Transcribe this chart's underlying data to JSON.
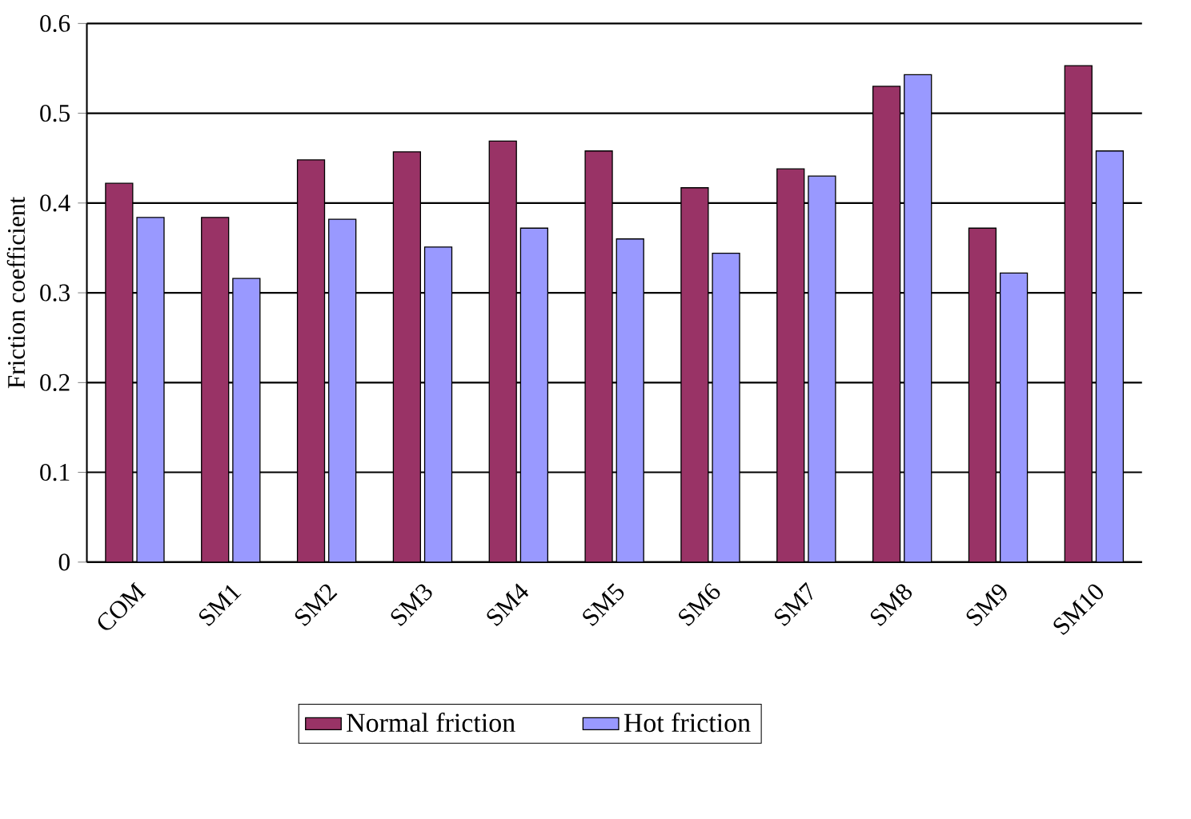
{
  "chart_data": {
    "type": "bar",
    "ylabel": "Friction coefficient",
    "categories": [
      "COM",
      "SM1",
      "SM2",
      "SM3",
      "SM4",
      "SM5",
      "SM6",
      "SM7",
      "SM8",
      "SM9",
      "SM10"
    ],
    "series": [
      {
        "name": "Normal friction",
        "color": "#993366",
        "values": [
          0.422,
          0.384,
          0.448,
          0.457,
          0.469,
          0.458,
          0.417,
          0.438,
          0.53,
          0.372,
          0.553
        ]
      },
      {
        "name": "Hot friction",
        "color": "#9999ff",
        "values": [
          0.384,
          0.316,
          0.382,
          0.351,
          0.372,
          0.36,
          0.344,
          0.43,
          0.543,
          0.322,
          0.458
        ]
      }
    ],
    "ylim": [
      0,
      0.6
    ],
    "yticks": [
      0,
      0.1,
      0.2,
      0.3,
      0.4,
      0.5,
      0.6
    ],
    "grid": "y",
    "legend": "bottom"
  }
}
